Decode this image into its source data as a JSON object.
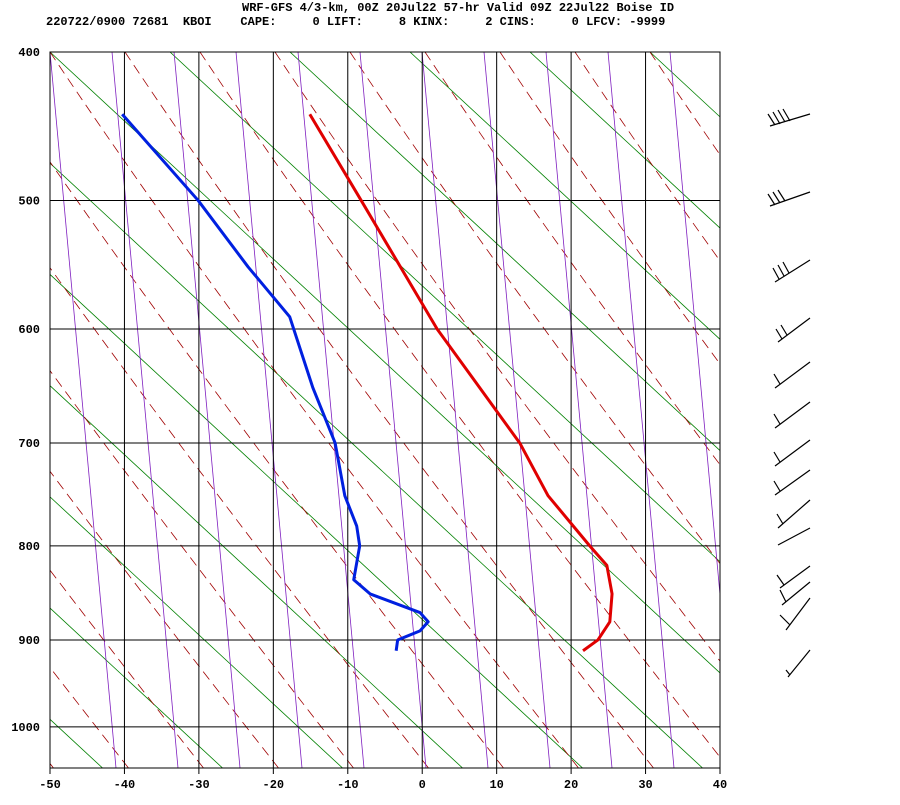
{
  "chart_data": {
    "type": "skewt",
    "title": "WRF-GFS 4/3-km, 00Z 20Jul22 57-hr Valid 09Z 22Jul22 Boise ID",
    "subtitle": "220722/0900 72681  KBOI    CAPE:     0 LIFT:     8 KINX:     2 CINS:     0 LFCV: -9999",
    "xlim": [
      -50,
      40
    ],
    "xticks": [
      -50,
      -40,
      -30,
      -20,
      -10,
      0,
      10,
      20,
      30,
      40
    ],
    "ylim": [
      1050,
      400
    ],
    "yticks": [
      400,
      500,
      600,
      700,
      800,
      900,
      1000
    ],
    "grid": true,
    "series": [
      {
        "color": "#e00000",
        "pressure": [
          440,
          500,
          600,
          700,
          750,
          800,
          820,
          850,
          880,
          900,
          912
        ],
        "values": [
          -15.1,
          -8.2,
          2.0,
          13.1,
          16.9,
          22.5,
          24.8,
          25.5,
          25.2,
          23.6,
          21.6
        ]
      },
      {
        "color": "#0020e0",
        "pressure": [
          440,
          500,
          550,
          590,
          650,
          700,
          750,
          780,
          800,
          835,
          850,
          870,
          880,
          890,
          900,
          912
        ],
        "values": [
          -40.3,
          -30.1,
          -23.4,
          -17.8,
          -14.7,
          -11.7,
          -10.4,
          -8.8,
          -8.4,
          -9.2,
          -7.0,
          -0.3,
          0.8,
          -0.3,
          -3.3,
          -3.5
        ]
      }
    ]
  }
}
